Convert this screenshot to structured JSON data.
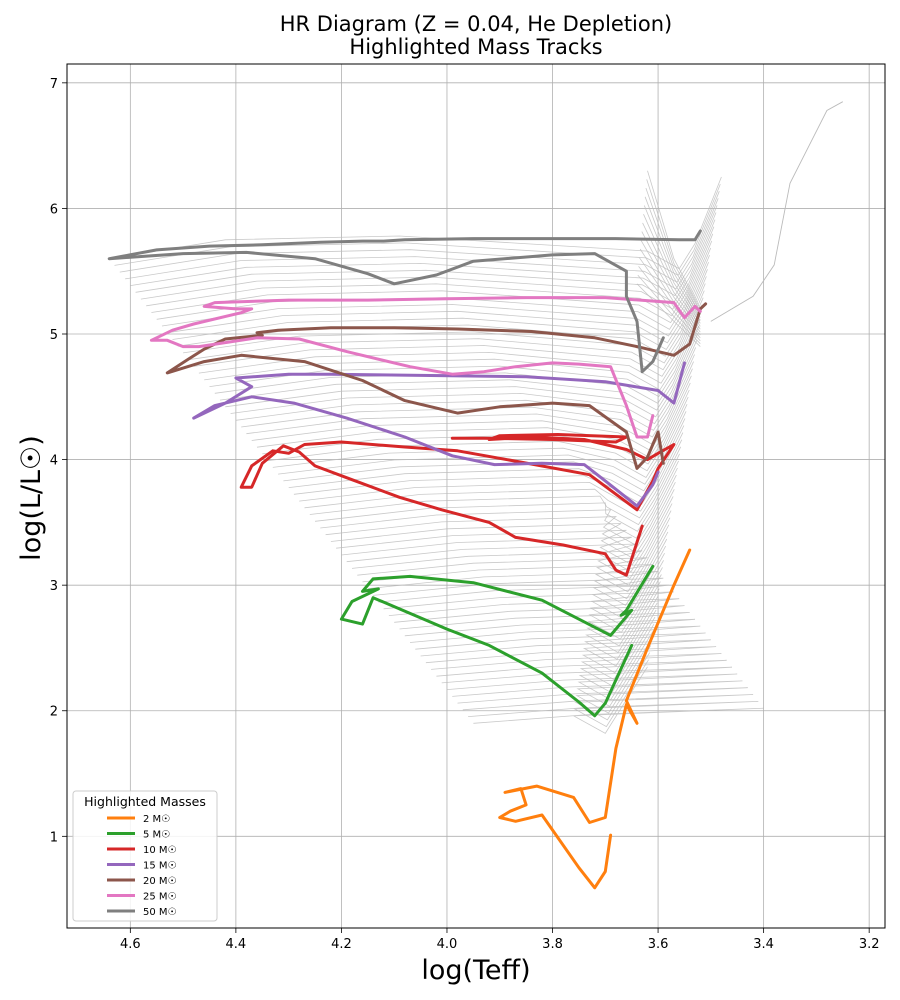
{
  "chart_data": {
    "type": "line",
    "title": "HR Diagram (Z = 0.04, He Depletion)",
    "subtitle": "Highlighted Mass Tracks",
    "xlabel": "log(Teff)",
    "ylabel": "log(L/L☉)",
    "xlim": [
      4.72,
      3.17
    ],
    "ylim": [
      0.27,
      7.15
    ],
    "x_inverted": true,
    "grid": true,
    "xticks": [
      4.6,
      4.4,
      4.2,
      4.0,
      3.8,
      3.6,
      3.4,
      3.2
    ],
    "xtick_labels": [
      "4.6",
      "4.4",
      "4.2",
      "4.0",
      "3.8",
      "3.6",
      "3.4",
      "3.2"
    ],
    "yticks": [
      1,
      2,
      3,
      4,
      5,
      6,
      7
    ],
    "ytick_labels": [
      "1",
      "2",
      "3",
      "4",
      "5",
      "6",
      "7"
    ],
    "legend_title": "Highlighted Masses",
    "legend_position": "lower-left",
    "background_tracks_color": "#bbbbbb",
    "background_tracks": "many grey evolutionary tracks spanning log(L/L☉) ≈ 1–5.8 (unhighlighted masses)",
    "series": [
      {
        "name": "2 M☉",
        "color": "#ff7f0e",
        "points": [
          [
            3.69,
            1.01
          ],
          [
            3.7,
            0.72
          ],
          [
            3.72,
            0.59
          ],
          [
            3.75,
            0.75
          ],
          [
            3.8,
            1.05
          ],
          [
            3.82,
            1.17
          ],
          [
            3.87,
            1.12
          ],
          [
            3.9,
            1.15
          ],
          [
            3.88,
            1.2
          ],
          [
            3.85,
            1.25
          ],
          [
            3.86,
            1.38
          ],
          [
            3.89,
            1.35
          ],
          [
            3.83,
            1.4
          ],
          [
            3.76,
            1.31
          ],
          [
            3.73,
            1.11
          ],
          [
            3.7,
            1.15
          ],
          [
            3.68,
            1.7
          ],
          [
            3.66,
            2.05
          ],
          [
            3.64,
            1.9
          ],
          [
            3.66,
            2.08
          ],
          [
            3.62,
            2.5
          ],
          [
            3.57,
            3.0
          ],
          [
            3.54,
            3.28
          ]
        ]
      },
      {
        "name": "5 M☉",
        "color": "#2ca02c",
        "points": [
          [
            3.61,
            3.15
          ],
          [
            3.66,
            2.8
          ],
          [
            3.67,
            2.76
          ],
          [
            3.65,
            2.8
          ],
          [
            3.69,
            2.6
          ],
          [
            3.82,
            2.88
          ],
          [
            3.95,
            3.02
          ],
          [
            4.07,
            3.07
          ],
          [
            4.14,
            3.05
          ],
          [
            4.16,
            2.95
          ],
          [
            4.13,
            2.97
          ],
          [
            4.18,
            2.87
          ],
          [
            4.2,
            2.73
          ],
          [
            4.16,
            2.69
          ],
          [
            4.14,
            2.9
          ],
          [
            4.0,
            2.65
          ],
          [
            3.92,
            2.52
          ],
          [
            3.82,
            2.3
          ],
          [
            3.75,
            2.07
          ],
          [
            3.72,
            1.96
          ],
          [
            3.7,
            2.06
          ],
          [
            3.65,
            2.52
          ]
        ]
      },
      {
        "name": "10 M☉",
        "color": "#d62728",
        "points": [
          [
            3.63,
            3.47
          ],
          [
            3.66,
            3.08
          ],
          [
            3.68,
            3.12
          ],
          [
            3.7,
            3.25
          ],
          [
            3.78,
            3.32
          ],
          [
            3.87,
            3.38
          ],
          [
            3.92,
            3.5
          ],
          [
            4.01,
            3.6
          ],
          [
            4.09,
            3.7
          ],
          [
            4.18,
            3.84
          ],
          [
            4.25,
            3.95
          ],
          [
            4.28,
            4.06
          ],
          [
            4.31,
            4.11
          ],
          [
            4.35,
            3.97
          ],
          [
            4.37,
            3.78
          ],
          [
            4.39,
            3.78
          ],
          [
            4.37,
            3.95
          ],
          [
            4.33,
            4.07
          ],
          [
            4.3,
            4.05
          ],
          [
            4.27,
            4.12
          ],
          [
            4.2,
            4.14
          ],
          [
            4.08,
            4.1
          ],
          [
            3.98,
            4.07
          ],
          [
            3.86,
            3.98
          ],
          [
            3.73,
            3.88
          ],
          [
            3.64,
            3.6
          ],
          [
            3.61,
            3.83
          ],
          [
            3.6,
            3.93
          ],
          [
            3.57,
            4.12
          ],
          [
            3.6,
            4.05
          ],
          [
            3.62,
            4.0
          ],
          [
            3.66,
            4.08
          ],
          [
            3.74,
            4.16
          ],
          [
            3.84,
            4.18
          ],
          [
            3.92,
            4.16
          ],
          [
            3.9,
            4.19
          ],
          [
            3.79,
            4.2
          ],
          [
            3.66,
            4.18
          ],
          [
            3.68,
            4.14
          ],
          [
            3.8,
            4.16
          ],
          [
            3.93,
            4.17
          ],
          [
            3.99,
            4.17
          ]
        ]
      },
      {
        "name": "15 M☉",
        "color": "#9467bd",
        "points": [
          [
            3.55,
            4.77
          ],
          [
            3.57,
            4.45
          ],
          [
            3.6,
            4.55
          ],
          [
            3.7,
            4.62
          ],
          [
            3.85,
            4.66
          ],
          [
            4.05,
            4.67
          ],
          [
            4.22,
            4.68
          ],
          [
            4.3,
            4.68
          ],
          [
            4.4,
            4.65
          ],
          [
            4.37,
            4.58
          ],
          [
            4.42,
            4.45
          ],
          [
            4.48,
            4.33
          ],
          [
            4.44,
            4.43
          ],
          [
            4.37,
            4.5
          ],
          [
            4.29,
            4.45
          ],
          [
            4.19,
            4.33
          ],
          [
            4.08,
            4.18
          ],
          [
            3.99,
            4.03
          ],
          [
            3.91,
            3.96
          ],
          [
            3.82,
            3.97
          ],
          [
            3.74,
            3.96
          ],
          [
            3.7,
            3.83
          ],
          [
            3.64,
            3.63
          ],
          [
            3.61,
            3.8
          ],
          [
            3.6,
            3.9
          ]
        ]
      },
      {
        "name": "20 M☉",
        "color": "#8c564b",
        "points": [
          [
            3.51,
            5.24
          ],
          [
            3.52,
            5.2
          ],
          [
            3.54,
            4.92
          ],
          [
            3.57,
            4.83
          ],
          [
            3.64,
            4.9
          ],
          [
            3.72,
            4.97
          ],
          [
            3.84,
            5.02
          ],
          [
            3.98,
            5.04
          ],
          [
            4.1,
            5.05
          ],
          [
            4.22,
            5.05
          ],
          [
            4.32,
            5.03
          ],
          [
            4.36,
            5.01
          ],
          [
            4.35,
            4.99
          ],
          [
            4.42,
            4.96
          ],
          [
            4.46,
            4.88
          ],
          [
            4.49,
            4.8
          ],
          [
            4.53,
            4.69
          ],
          [
            4.46,
            4.78
          ],
          [
            4.39,
            4.83
          ],
          [
            4.27,
            4.78
          ],
          [
            4.16,
            4.63
          ],
          [
            4.08,
            4.47
          ],
          [
            3.98,
            4.37
          ],
          [
            3.9,
            4.42
          ],
          [
            3.8,
            4.45
          ],
          [
            3.73,
            4.43
          ],
          [
            3.66,
            4.22
          ],
          [
            3.64,
            3.93
          ],
          [
            3.62,
            4.02
          ],
          [
            3.6,
            4.22
          ],
          [
            3.59,
            3.97
          ]
        ]
      },
      {
        "name": "25 M☉",
        "color": "#e377c2",
        "points": [
          [
            3.52,
            5.18
          ],
          [
            3.53,
            5.22
          ],
          [
            3.55,
            5.13
          ],
          [
            3.57,
            5.25
          ],
          [
            3.7,
            5.29
          ],
          [
            3.85,
            5.29
          ],
          [
            4.0,
            5.28
          ],
          [
            4.15,
            5.27
          ],
          [
            4.3,
            5.27
          ],
          [
            4.44,
            5.25
          ],
          [
            4.46,
            5.22
          ],
          [
            4.4,
            5.2
          ],
          [
            4.37,
            5.2
          ],
          [
            4.39,
            5.17
          ],
          [
            4.48,
            5.08
          ],
          [
            4.52,
            5.03
          ],
          [
            4.56,
            4.95
          ],
          [
            4.53,
            4.95
          ],
          [
            4.5,
            4.9
          ],
          [
            4.47,
            4.9
          ],
          [
            4.36,
            4.97
          ],
          [
            4.28,
            4.96
          ],
          [
            4.19,
            4.86
          ],
          [
            4.07,
            4.74
          ],
          [
            3.99,
            4.68
          ],
          [
            3.93,
            4.7
          ],
          [
            3.87,
            4.74
          ],
          [
            3.8,
            4.77
          ],
          [
            3.75,
            4.76
          ],
          [
            3.69,
            4.74
          ],
          [
            3.66,
            4.43
          ],
          [
            3.64,
            4.18
          ],
          [
            3.62,
            4.18
          ],
          [
            3.61,
            4.35
          ]
        ]
      },
      {
        "name": "50 M☉",
        "color": "#7f7f7f",
        "points": [
          [
            3.52,
            5.82
          ],
          [
            3.53,
            5.75
          ],
          [
            3.56,
            5.75
          ],
          [
            3.68,
            5.76
          ],
          [
            3.82,
            5.76
          ],
          [
            3.95,
            5.76
          ],
          [
            4.08,
            5.75
          ],
          [
            4.12,
            5.74
          ],
          [
            4.16,
            5.74
          ],
          [
            4.24,
            5.73
          ],
          [
            4.35,
            5.71
          ],
          [
            4.45,
            5.7
          ],
          [
            4.55,
            5.67
          ],
          [
            4.64,
            5.6
          ],
          [
            4.5,
            5.64
          ],
          [
            4.38,
            5.65
          ],
          [
            4.25,
            5.6
          ],
          [
            4.15,
            5.48
          ],
          [
            4.1,
            5.4
          ],
          [
            4.02,
            5.47
          ],
          [
            3.95,
            5.58
          ],
          [
            3.8,
            5.63
          ],
          [
            3.72,
            5.64
          ],
          [
            3.66,
            5.5
          ],
          [
            3.66,
            5.3
          ],
          [
            3.64,
            5.1
          ],
          [
            3.63,
            4.7
          ],
          [
            3.61,
            4.78
          ],
          [
            3.59,
            4.97
          ]
        ]
      }
    ]
  }
}
